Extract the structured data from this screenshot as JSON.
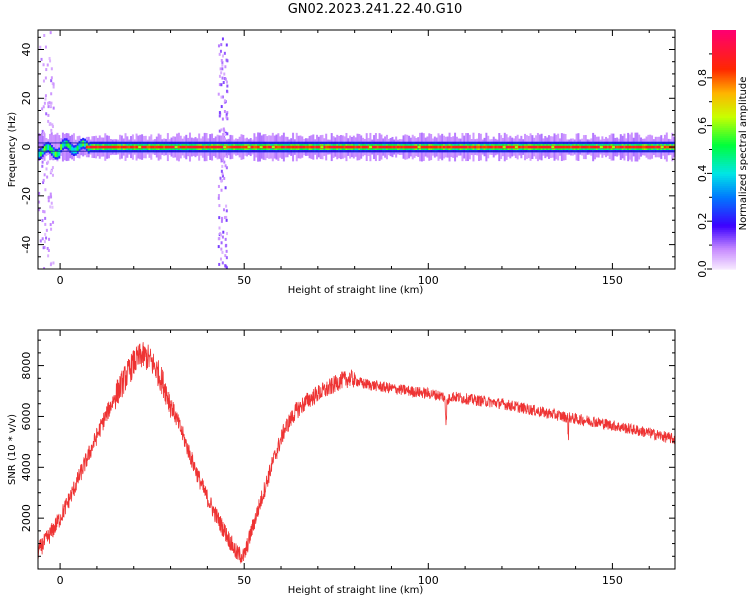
{
  "title": "GN02.2023.241.22.40.G10",
  "colors": {
    "snr_line": "#ee3333",
    "axis": "#000000"
  },
  "chart_data": [
    {
      "type": "heatmap",
      "xlabel": "Height of straight line (km)",
      "ylabel": "Frequency (Hz)",
      "xlim": [
        -6,
        167
      ],
      "ylim": [
        -50,
        48
      ],
      "xticks": [
        0,
        50,
        100,
        150
      ],
      "yticks": [
        -40,
        -20,
        0,
        20,
        40
      ],
      "colormap": "gist_rainbow",
      "colorbar": {
        "label": "Normalized spectral amplitude",
        "ticks": [
          "0.0",
          "0.2",
          "0.4",
          "0.6",
          "0.8"
        ],
        "range": [
          0,
          1
        ]
      },
      "features": {
        "main_band_frequency_hz": 0,
        "main_band_halfwidth_hz": 3,
        "main_band_start_km": -6,
        "main_band_end_km": 167,
        "oscillation_region_km": [
          -6,
          8
        ],
        "vertical_noise_column_km": 44,
        "noise_column_span_hz": [
          -50,
          46
        ]
      }
    },
    {
      "type": "line",
      "xlabel": "Height of straight line (km)",
      "ylabel": "SNR (10 * v/v)",
      "xlim": [
        -6,
        167
      ],
      "ylim": [
        0,
        9400
      ],
      "xticks": [
        0,
        50,
        100,
        150
      ],
      "yticks": [
        2000,
        4000,
        6000,
        8000
      ],
      "series": [
        {
          "x": [
            -6,
            -3,
            0,
            3,
            6,
            9,
            12,
            15,
            18,
            20,
            22,
            24,
            26,
            28,
            30,
            33,
            36,
            39,
            42,
            45,
            48,
            50,
            52,
            55,
            58,
            61,
            64,
            67,
            70,
            73,
            76,
            79,
            82,
            86,
            90,
            95,
            100,
            104,
            105,
            106,
            110,
            115,
            120,
            125,
            130,
            135,
            140,
            145,
            150,
            155,
            160,
            167
          ],
          "y": [
            700,
            1300,
            2000,
            2900,
            3900,
            4900,
            5900,
            6800,
            7600,
            8100,
            8400,
            8300,
            7900,
            7300,
            6500,
            5400,
            4200,
            3100,
            2200,
            1400,
            600,
            500,
            1500,
            2900,
            4300,
            5500,
            6200,
            6600,
            6900,
            7100,
            7400,
            7500,
            7300,
            7200,
            7100,
            7000,
            6900,
            6800,
            6500,
            6800,
            6700,
            6600,
            6500,
            6350,
            6200,
            6050,
            5900,
            5800,
            5650,
            5500,
            5350,
            5100
          ]
        }
      ]
    }
  ]
}
